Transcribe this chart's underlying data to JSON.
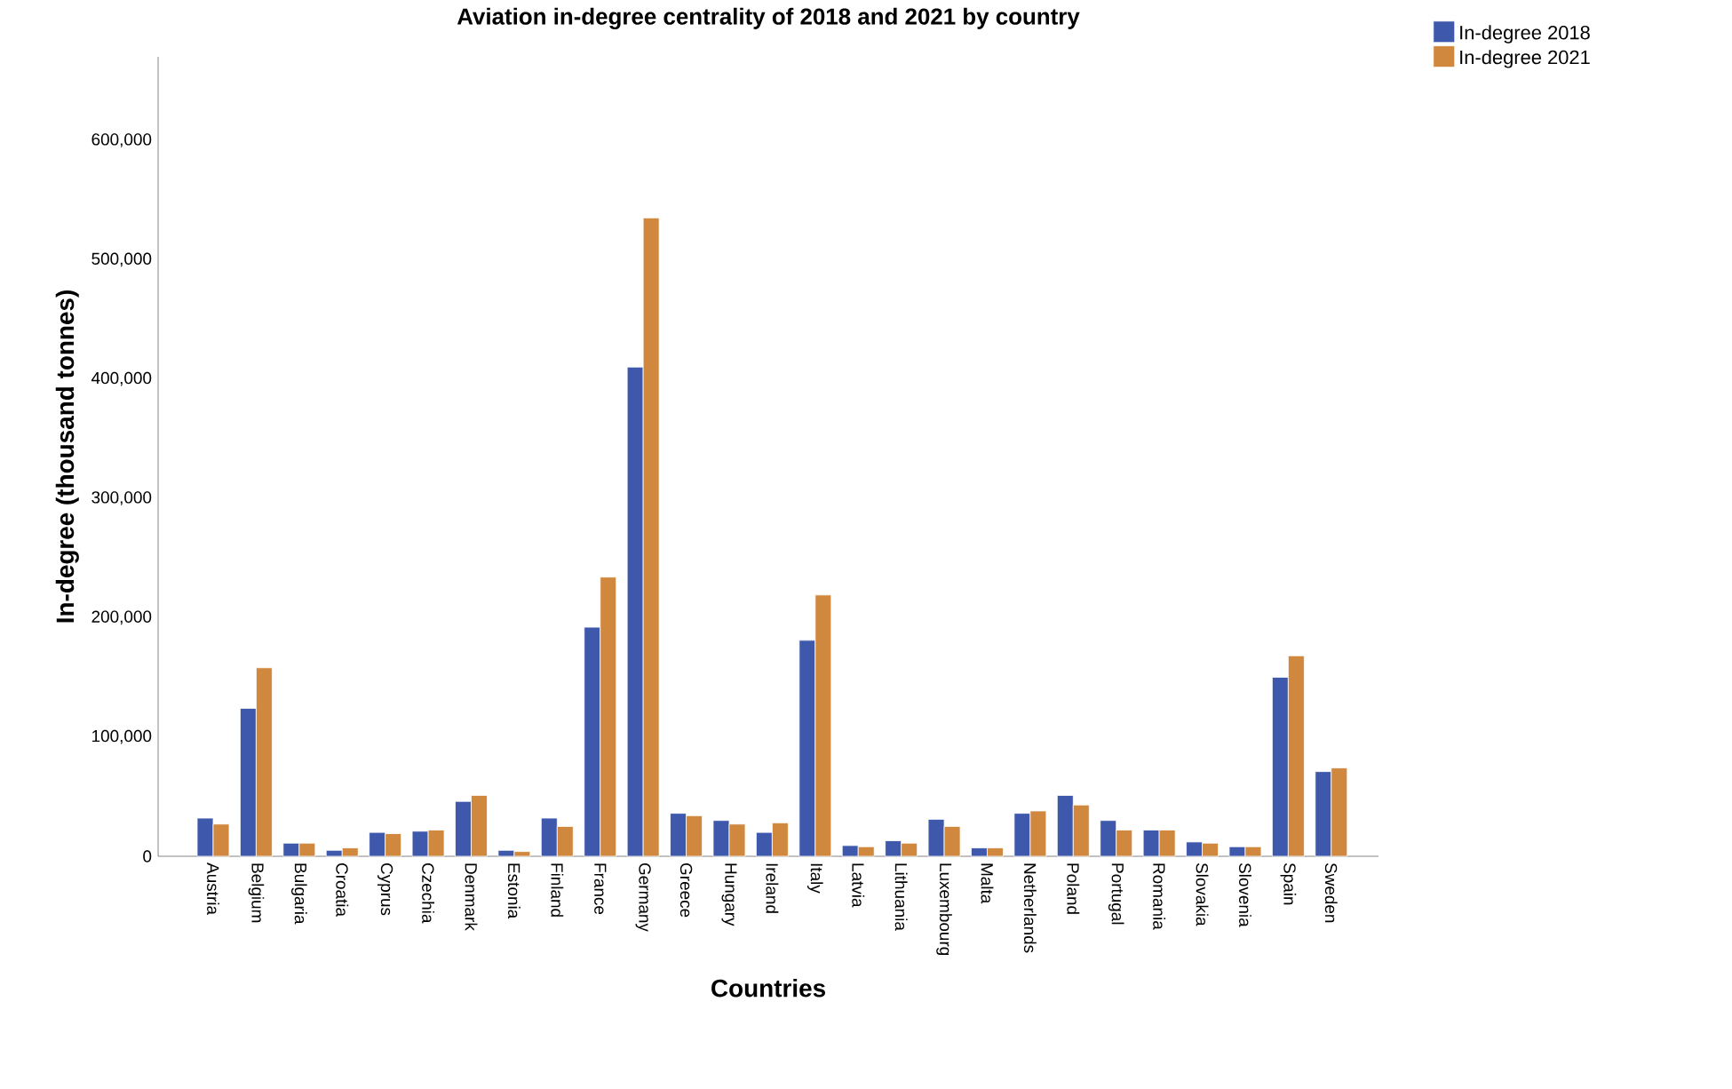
{
  "chart_data": {
    "type": "bar",
    "title": "Aviation in-degree centrality of 2018 and 2021 by country",
    "xlabel": "Countries",
    "ylabel": "In-degree (thousand tonnes)",
    "categories": [
      "Austria",
      "Belgium",
      "Bulgaria",
      "Croatia",
      "Cyprus",
      "Czechia",
      "Denmark",
      "Estonia",
      "Finland",
      "France",
      "Germany",
      "Greece",
      "Hungary",
      "Ireland",
      "Italy",
      "Latvia",
      "Lithuania",
      "Luxembourg",
      "Malta",
      "Netherlands",
      "Poland",
      "Portugal",
      "Romania",
      "Slovakia",
      "Slovenia",
      "Spain",
      "Sweden"
    ],
    "series": [
      {
        "name": "In-degree 2018",
        "color": "#3e58ac",
        "values": [
          32000,
          124000,
          11000,
          5000,
          20000,
          21000,
          46000,
          5000,
          32000,
          192000,
          410000,
          36000,
          30000,
          20000,
          181000,
          9000,
          13000,
          31000,
          7000,
          36000,
          51000,
          30000,
          22000,
          12000,
          8000,
          150000,
          71000
        ]
      },
      {
        "name": "In-degree 2021",
        "color": "#d0883f",
        "values": [
          27000,
          158000,
          11000,
          7000,
          19000,
          22000,
          51000,
          4000,
          25000,
          234000,
          535000,
          34000,
          27000,
          28000,
          219000,
          8000,
          11000,
          25000,
          7000,
          38000,
          43000,
          22000,
          22000,
          11000,
          8000,
          168000,
          74000
        ]
      }
    ],
    "ylim": [
      0,
      670000
    ],
    "yticks": [
      {
        "value": 0,
        "label": "0"
      },
      {
        "value": 100000,
        "label": "100,000"
      },
      {
        "value": 200000,
        "label": "200,000"
      },
      {
        "value": 300000,
        "label": "300,000"
      },
      {
        "value": 400000,
        "label": "400,000"
      },
      {
        "value": 500000,
        "label": "500,000"
      },
      {
        "value": 600000,
        "label": "600,000"
      }
    ],
    "legend": "top right"
  }
}
